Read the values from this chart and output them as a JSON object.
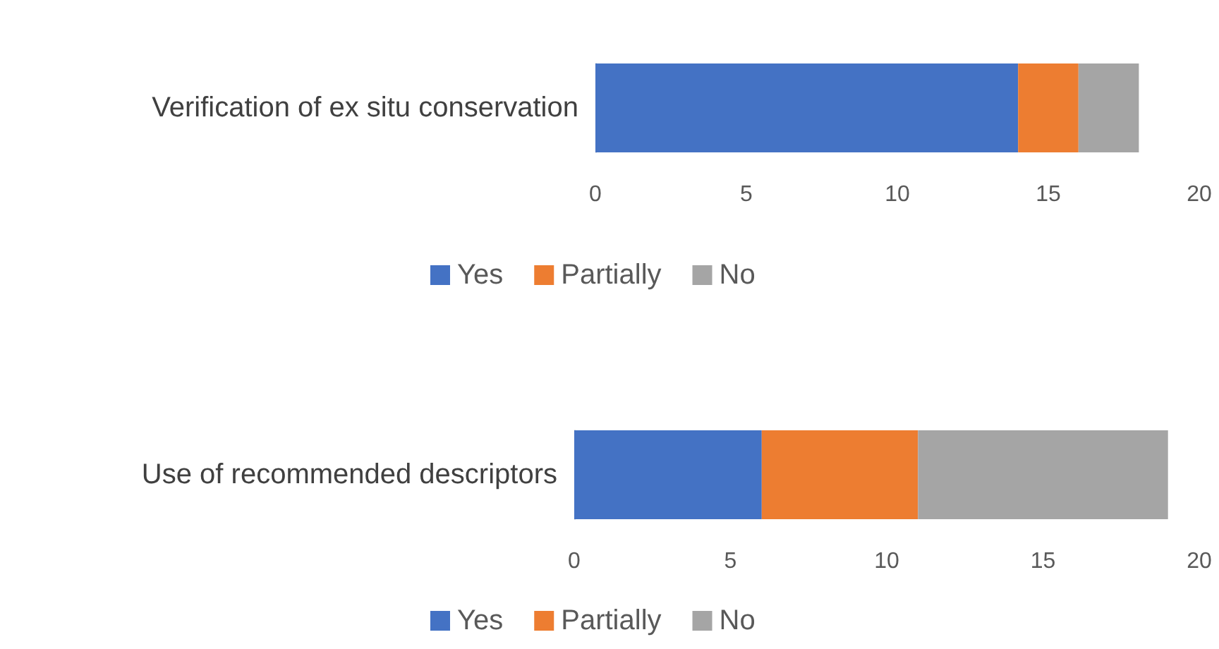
{
  "chart_data": [
    {
      "type": "bar",
      "orientation": "horizontal",
      "stacked": true,
      "categories": [
        "Verification of ex situ conservation"
      ],
      "series": [
        {
          "name": "Yes",
          "color": "#4472c4",
          "values": [
            14
          ]
        },
        {
          "name": "Partially",
          "color": "#ed7d31",
          "values": [
            2
          ]
        },
        {
          "name": "No",
          "color": "#a5a5a5",
          "values": [
            2
          ]
        }
      ],
      "xlim": [
        0,
        20
      ],
      "xticks": [
        0,
        5,
        10,
        15,
        20
      ],
      "legend": "bottom"
    },
    {
      "type": "bar",
      "orientation": "horizontal",
      "stacked": true,
      "categories": [
        "Use of recommended descriptors"
      ],
      "series": [
        {
          "name": "Yes",
          "color": "#4472c4",
          "values": [
            6
          ]
        },
        {
          "name": "Partially",
          "color": "#ed7d31",
          "values": [
            5
          ]
        },
        {
          "name": "No",
          "color": "#a5a5a5",
          "values": [
            8
          ]
        }
      ],
      "xlim": [
        0,
        20
      ],
      "xticks": [
        0,
        5,
        10,
        15,
        20
      ],
      "legend": "bottom"
    }
  ]
}
